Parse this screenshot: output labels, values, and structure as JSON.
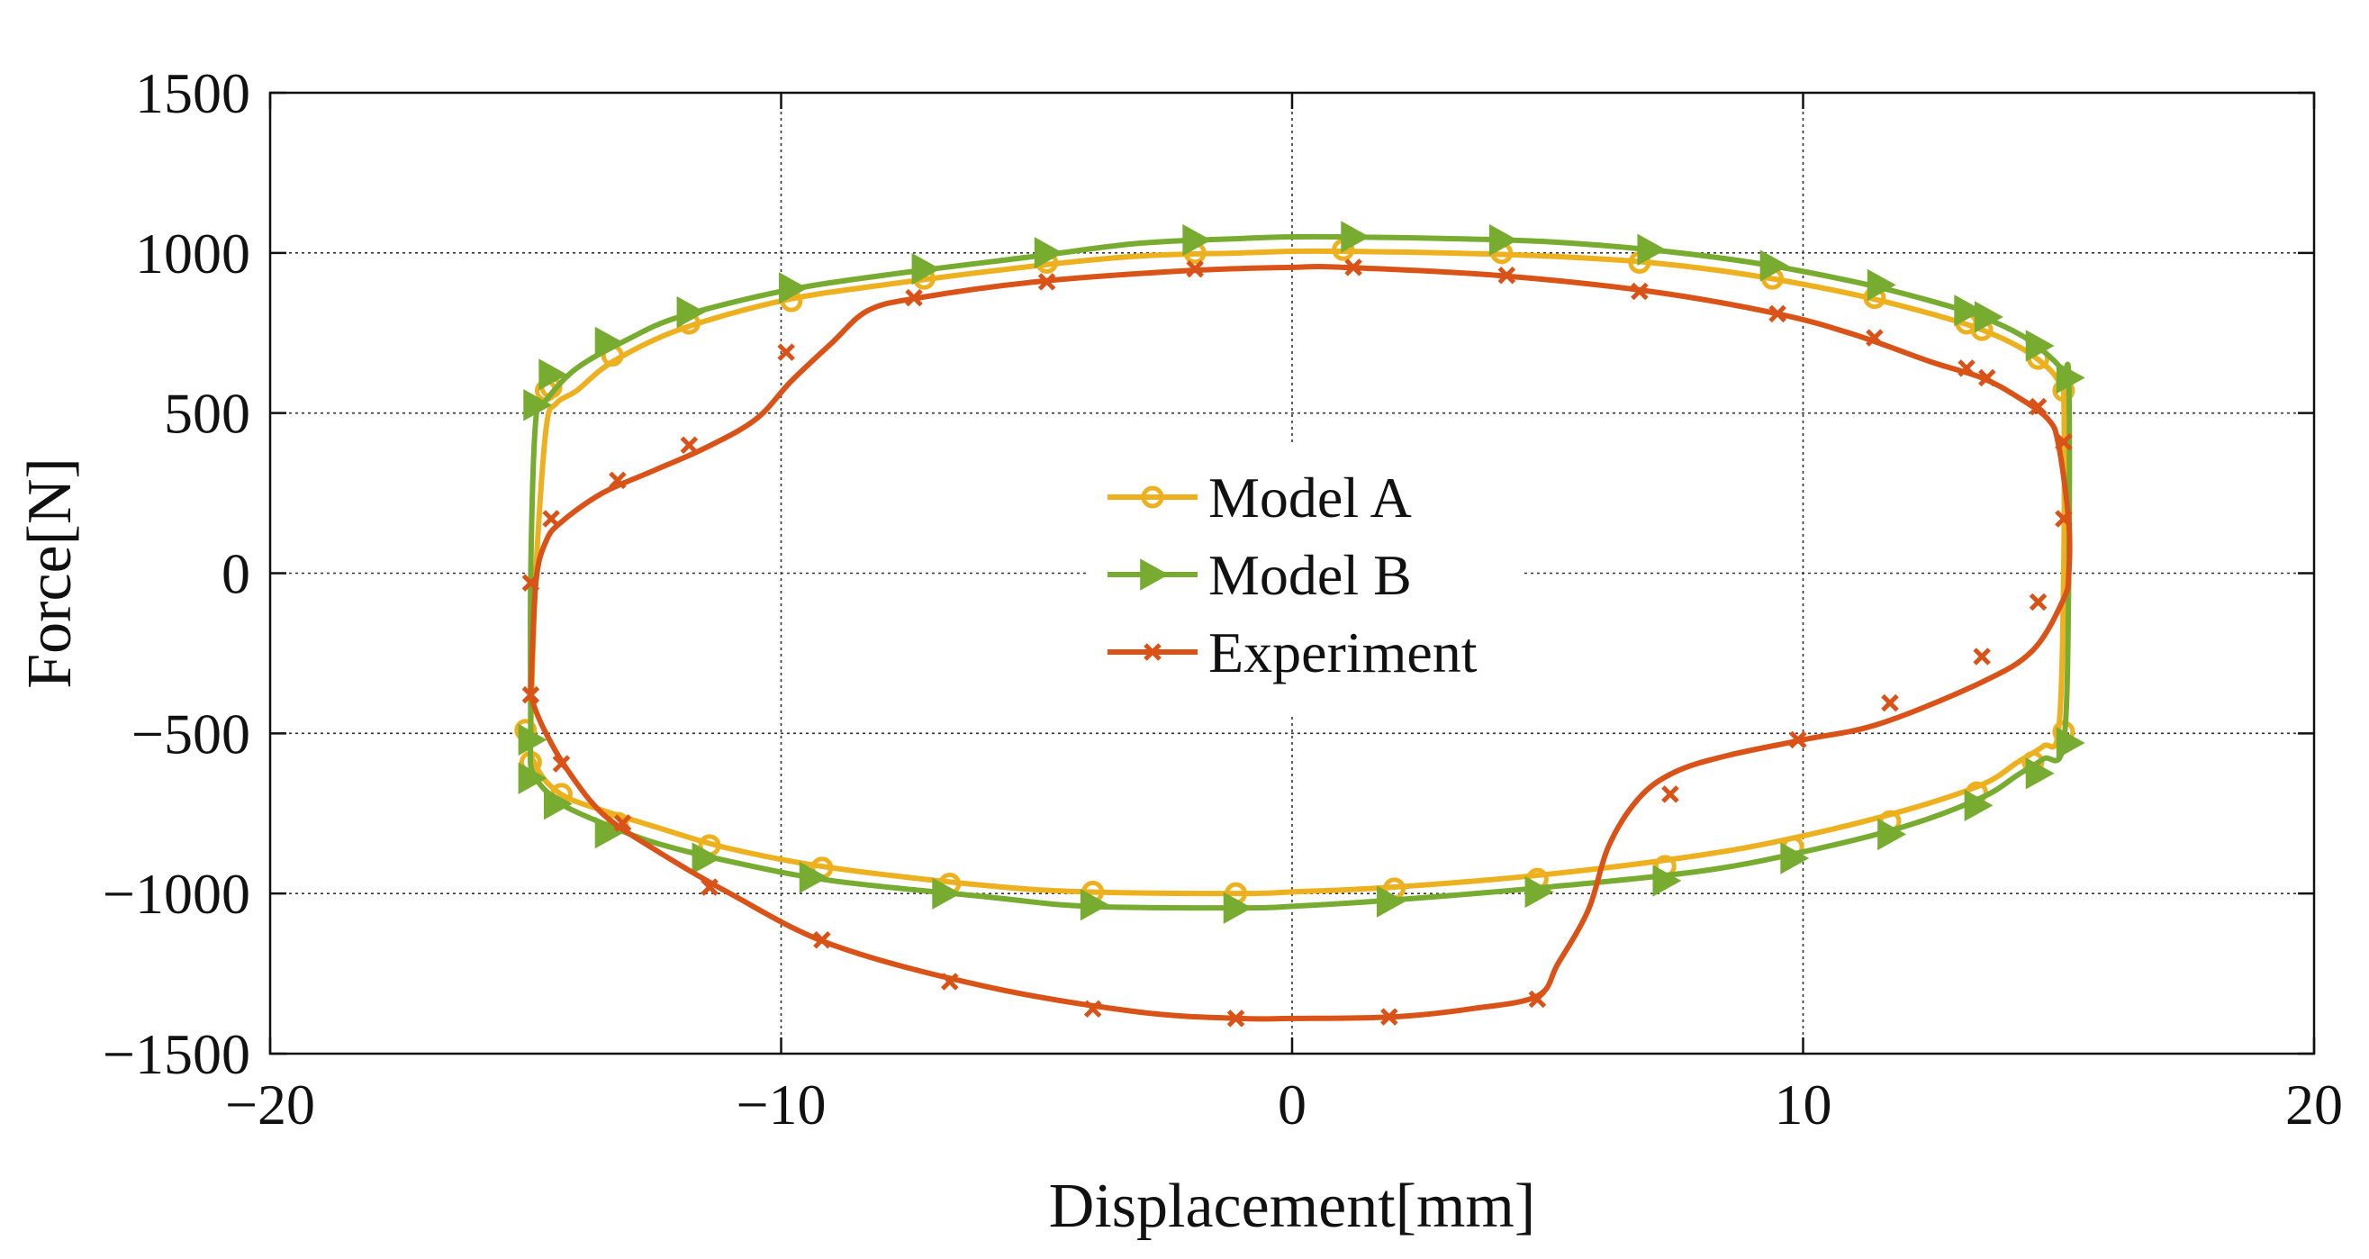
{
  "chart_data": {
    "type": "line",
    "title": "",
    "xlabel": "Displacement[mm]",
    "ylabel": "Force[N]",
    "xlim": [
      -20,
      20
    ],
    "ylim": [
      -1500,
      1500
    ],
    "xticks": [
      -20,
      -10,
      0,
      10,
      20
    ],
    "yticks": [
      -1500,
      -1000,
      -500,
      0,
      500,
      1000,
      1500
    ],
    "xtick_labels": [
      "−20",
      "−10",
      "0",
      "10",
      "20"
    ],
    "ytick_labels": [
      "−1500",
      "−1000",
      "−500",
      "0",
      "500",
      "1000",
      "1500"
    ],
    "grid": true,
    "legend_position": "center",
    "series": [
      {
        "name": "Model A",
        "color": "#EDB120",
        "marker": "circle",
        "x": [
          -14.9,
          -14.8,
          -14.6,
          -14.4,
          -14.0,
          -13.3,
          -12.0,
          -10.0,
          -8.0,
          -5.0,
          -3.0,
          -1.0,
          0.0,
          1.0,
          3.0,
          5.0,
          7.0,
          9.0,
          11.0,
          12.5,
          13.5,
          14.3,
          14.8,
          15.0,
          15.1,
          15.1,
          15.0,
          14.7,
          14.2,
          13.5,
          12.0,
          10.0,
          8.0,
          5.0,
          2.0,
          0.0,
          -1.0,
          -4.0,
          -6.0,
          -9.0,
          -11.0,
          -12.5,
          -13.5,
          -14.2,
          -14.6,
          -14.8,
          -14.9,
          -14.9
        ],
        "y": [
          -480,
          0,
          450,
          530,
          570,
          660,
          760,
          850,
          900,
          960,
          990,
          1000,
          1005,
          1005,
          1000,
          990,
          970,
          930,
          870,
          810,
          760,
          700,
          640,
          600,
          570,
          0,
          -490,
          -540,
          -590,
          -660,
          -740,
          -820,
          -880,
          -940,
          -980,
          -995,
          -1000,
          -995,
          -975,
          -920,
          -860,
          -790,
          -740,
          -700,
          -650,
          -600,
          -560,
          -480
        ],
        "markers_x": [
          -15.0,
          -14.6,
          -14.5,
          -13.3,
          -11.8,
          -9.8,
          -7.2,
          -4.8,
          -1.9,
          1.0,
          4.1,
          6.8,
          9.4,
          11.4,
          13.2,
          13.5,
          14.6,
          15.1,
          -14.9,
          -14.3,
          -13.2,
          -11.4,
          -9.2,
          -6.7,
          -3.9,
          -1.1,
          2.0,
          4.8,
          7.3,
          9.8,
          11.7,
          13.4,
          14.5,
          15.1
        ],
        "markers_y": [
          -490,
          570,
          580,
          680,
          780,
          850,
          920,
          970,
          1000,
          1010,
          1000,
          970,
          920,
          860,
          780,
          760,
          670,
          570,
          -590,
          -690,
          -780,
          -850,
          -920,
          -970,
          -995,
          -1000,
          -985,
          -955,
          -915,
          -855,
          -775,
          -685,
          -590,
          -495
        ]
      },
      {
        "name": "Model B",
        "color": "#77AC30",
        "marker": "triangle-right",
        "x": [
          -14.9,
          -14.9,
          -14.8,
          -14.6,
          -14.0,
          -13.0,
          -12.0,
          -10.0,
          -8.0,
          -5.0,
          -3.0,
          -1.0,
          0.0,
          1.0,
          3.0,
          5.0,
          7.0,
          9.0,
          11.0,
          12.5,
          13.5,
          14.3,
          14.8,
          15.1,
          15.2,
          15.2,
          15.1,
          14.7,
          14.2,
          13.5,
          12.0,
          10.0,
          8.0,
          5.0,
          2.0,
          0.0,
          -1.0,
          -4.0,
          -6.0,
          -9.0,
          -11.0,
          -12.5,
          -13.5,
          -14.2,
          -14.6,
          -14.8,
          -14.9,
          -14.9
        ],
        "y": [
          -520,
          0,
          480,
          540,
          640,
          730,
          800,
          880,
          930,
          990,
          1030,
          1045,
          1050,
          1050,
          1045,
          1035,
          1010,
          970,
          910,
          850,
          800,
          740,
          680,
          630,
          600,
          0,
          -530,
          -580,
          -630,
          -700,
          -790,
          -870,
          -930,
          -980,
          -1020,
          -1040,
          -1045,
          -1040,
          -1010,
          -960,
          -900,
          -840,
          -780,
          -730,
          -680,
          -640,
          -600,
          -520
        ],
        "markers_x": [
          -14.9,
          -14.8,
          -14.5,
          -13.4,
          -11.8,
          -9.8,
          -7.2,
          -4.8,
          -1.9,
          1.2,
          4.1,
          7.0,
          9.4,
          11.5,
          13.2,
          13.6,
          14.6,
          15.2,
          -14.9,
          -14.4,
          -13.4,
          -11.5,
          -9.4,
          -6.8,
          -3.9,
          -1.1,
          1.9,
          4.8,
          7.3,
          9.8,
          11.7,
          13.4,
          14.6,
          15.2
        ],
        "markers_y": [
          -520,
          525,
          620,
          720,
          815,
          890,
          950,
          1000,
          1040,
          1050,
          1040,
          1010,
          960,
          900,
          820,
          800,
          710,
          610,
          -640,
          -720,
          -810,
          -890,
          -950,
          -1000,
          -1035,
          -1045,
          -1025,
          -995,
          -960,
          -890,
          -815,
          -725,
          -625,
          -530
        ]
      },
      {
        "name": "Experiment",
        "color": "#D95319",
        "marker": "x",
        "x": [
          -14.9,
          -14.8,
          -14.6,
          -14.3,
          -13.5,
          -12.5,
          -11.5,
          -10.5,
          -9.8,
          -9.0,
          -8.3,
          -7.3,
          -5.0,
          -2.0,
          0.0,
          1.0,
          4.0,
          7.0,
          9.5,
          11.0,
          12.5,
          13.5,
          14.2,
          14.8,
          15.0,
          15.2,
          15.2,
          15.1,
          14.5,
          13.5,
          11.5,
          10.0,
          8.5,
          7.5,
          6.8,
          6.2,
          5.8,
          5.2,
          4.8,
          3.5,
          2.0,
          0.0,
          -1.0,
          -3.0,
          -6.0,
          -9.0,
          -11.0,
          -12.5,
          -13.5,
          -14.2,
          -14.6,
          -14.8,
          -14.9
        ],
        "y": [
          -380,
          -30,
          100,
          160,
          250,
          320,
          390,
          480,
          600,
          720,
          820,
          860,
          910,
          945,
          955,
          955,
          930,
          880,
          810,
          745,
          660,
          610,
          550,
          480,
          400,
          160,
          0,
          -80,
          -240,
          -340,
          -470,
          -520,
          -570,
          -620,
          -700,
          -850,
          -1050,
          -1220,
          -1320,
          -1360,
          -1385,
          -1390,
          -1390,
          -1370,
          -1290,
          -1160,
          -1000,
          -860,
          -750,
          -610,
          -500,
          -430,
          -380
        ],
        "markers_x": [
          -14.9,
          -14.5,
          -13.2,
          -11.8,
          -9.9,
          -7.4,
          -4.8,
          -1.9,
          1.2,
          4.2,
          6.8,
          9.5,
          11.4,
          13.2,
          13.6,
          14.6,
          15.1,
          15.1,
          14.6,
          13.5,
          11.7,
          9.9,
          7.4,
          4.8,
          1.9,
          -1.1,
          -3.9,
          -6.7,
          -9.2,
          -11.4,
          -13.1,
          -14.3,
          -14.9
        ],
        "markers_y": [
          -30,
          170,
          290,
          400,
          690,
          860,
          910,
          950,
          955,
          930,
          880,
          810,
          735,
          640,
          610,
          520,
          410,
          170,
          -90,
          -260,
          -405,
          -520,
          -690,
          -1330,
          -1385,
          -1390,
          -1360,
          -1275,
          -1145,
          -980,
          -780,
          -595,
          -380
        ]
      }
    ]
  }
}
